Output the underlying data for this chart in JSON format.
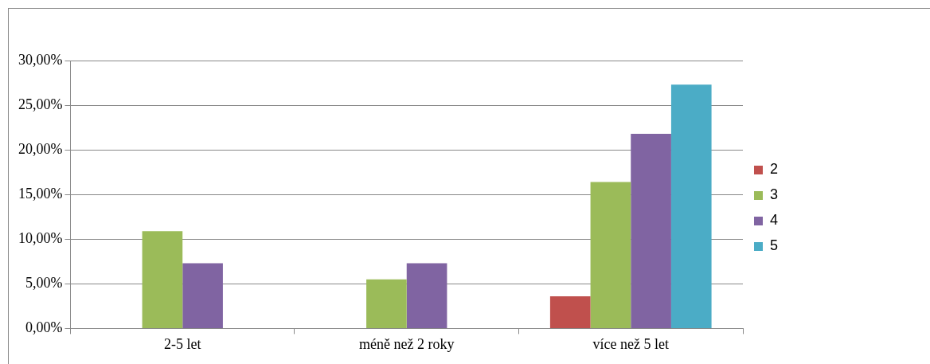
{
  "chart_data": {
    "type": "bar",
    "categories": [
      "2-5 let",
      "méně než 2 roky",
      "více než 5 let"
    ],
    "series": [
      {
        "name": "2",
        "color": "#c0504d",
        "values": [
          null,
          null,
          3.6
        ]
      },
      {
        "name": "3",
        "color": "#9bbb59",
        "values": [
          10.9,
          5.5,
          16.4
        ]
      },
      {
        "name": "4",
        "color": "#8064a2",
        "values": [
          7.3,
          7.3,
          21.8
        ]
      },
      {
        "name": "5",
        "color": "#4bacc6",
        "values": [
          null,
          null,
          27.3
        ]
      }
    ],
    "ylim": [
      0,
      30
    ],
    "yticks": [
      {
        "value": 0,
        "label": "0,00%"
      },
      {
        "value": 5,
        "label": "5,00%"
      },
      {
        "value": 10,
        "label": "10,00%"
      },
      {
        "value": 15,
        "label": "15,00%"
      },
      {
        "value": 20,
        "label": "20,00%"
      },
      {
        "value": 25,
        "label": "25,00%"
      },
      {
        "value": 30,
        "label": "30,00%"
      }
    ],
    "grid": "y",
    "legend": "right"
  }
}
